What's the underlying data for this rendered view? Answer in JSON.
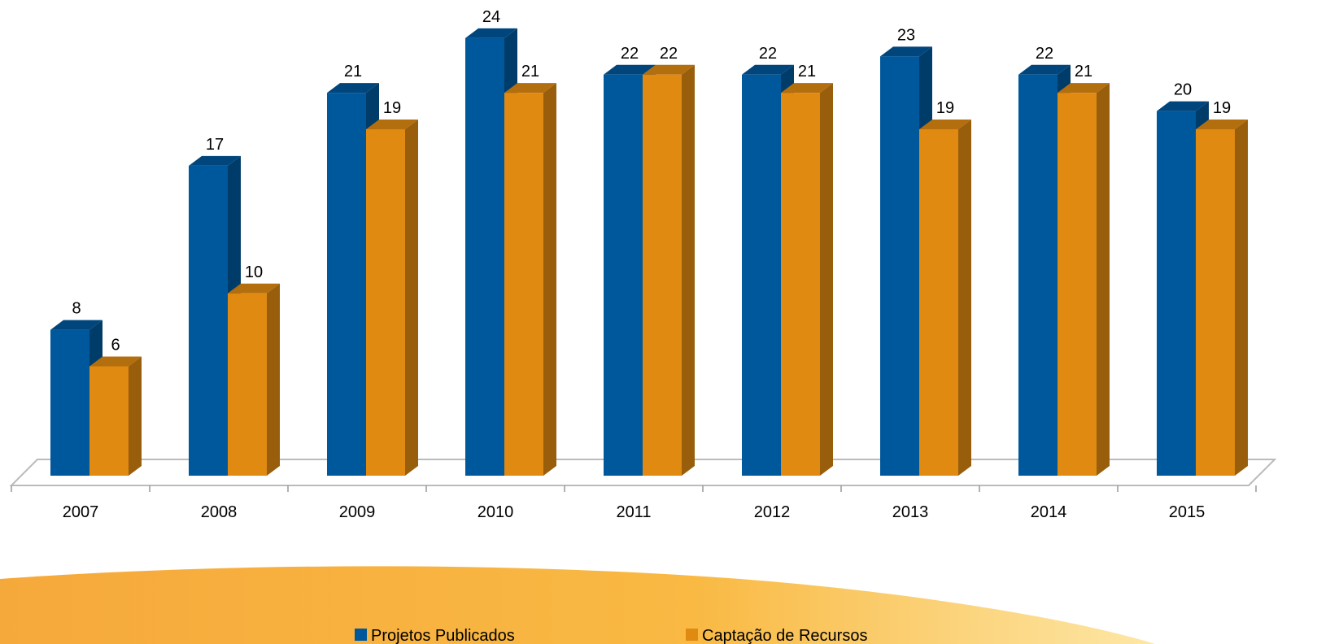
{
  "chart_data": {
    "type": "bar3d",
    "categories": [
      "2007",
      "2008",
      "2009",
      "2010",
      "2011",
      "2012",
      "2013",
      "2014",
      "2015"
    ],
    "series": [
      {
        "name": "Projetos Publicados",
        "color": "#00589c",
        "values": [
          8,
          17,
          21,
          24,
          22,
          22,
          23,
          22,
          20
        ]
      },
      {
        "name": "Captação de Recursos",
        "color": "#e08a12",
        "values": [
          6,
          10,
          19,
          21,
          22,
          21,
          19,
          21,
          19
        ]
      }
    ],
    "data_labels": true,
    "legend": "bottom"
  }
}
